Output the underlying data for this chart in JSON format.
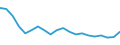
{
  "x": [
    0,
    1,
    2,
    3,
    4,
    5,
    6,
    7,
    8,
    9,
    10,
    11,
    12,
    13,
    14,
    15,
    16,
    17,
    18,
    19
  ],
  "y": [
    10.0,
    9.8,
    8.5,
    6.5,
    5.2,
    5.8,
    6.5,
    5.8,
    5.0,
    5.8,
    6.2,
    5.5,
    5.0,
    5.2,
    4.8,
    4.6,
    4.8,
    4.4,
    4.5,
    5.5
  ],
  "line_color": "#2e9fd4",
  "linewidth": 1.3,
  "background_color": "#ffffff",
  "ylim": [
    3.0,
    11.5
  ]
}
